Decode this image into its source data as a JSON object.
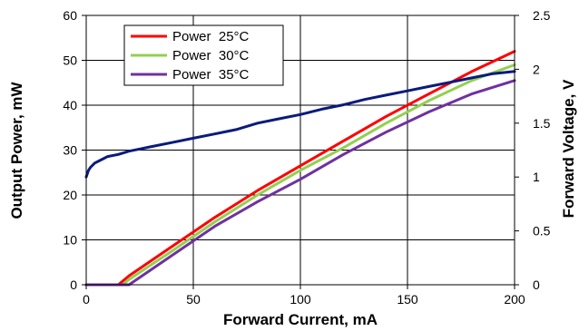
{
  "chart_data": {
    "type": "line",
    "x_axis": {
      "label": "Forward Current, mA",
      "ticks": [
        "0",
        "50",
        "100",
        "150",
        "200"
      ],
      "range": [
        0,
        200
      ]
    },
    "y_left": {
      "label": "Output Power, mW",
      "ticks": [
        "0",
        "10",
        "20",
        "30",
        "40",
        "50",
        "60"
      ],
      "range": [
        0,
        60
      ]
    },
    "y_right": {
      "label": "Forward Voltage, V",
      "ticks": [
        "0",
        "0.5",
        "1",
        "1.5",
        "2",
        "2.5"
      ],
      "range": [
        0,
        2.5
      ]
    },
    "grid": true,
    "legend_position": "top-left",
    "series": [
      {
        "name": "Power  25°C",
        "axis": "left",
        "color": "#ff0000",
        "x": [
          0,
          15,
          20,
          40,
          60,
          80,
          100,
          120,
          140,
          160,
          180,
          200
        ],
        "y": [
          0,
          0,
          2,
          8.5,
          15,
          21,
          26.5,
          32,
          37.5,
          42.5,
          47.5,
          52
        ]
      },
      {
        "name": "Power  30°C",
        "axis": "left",
        "color": "#92d050",
        "x": [
          0,
          17,
          20,
          40,
          60,
          80,
          100,
          120,
          140,
          160,
          180,
          200
        ],
        "y": [
          0,
          0,
          1.2,
          7.5,
          14,
          20,
          25.5,
          30.5,
          36,
          41,
          45.5,
          49
        ]
      },
      {
        "name": "Power  35°C",
        "axis": "left",
        "color": "#7030a0",
        "x": [
          0,
          20,
          40,
          60,
          80,
          100,
          120,
          140,
          160,
          180,
          200
        ],
        "y": [
          0,
          0,
          6.5,
          13,
          18.5,
          23.5,
          29,
          34,
          38.5,
          42.5,
          45.5
        ]
      },
      {
        "name": "",
        "axis": "right",
        "color": "#0a1b7c",
        "x": [
          0,
          1,
          2,
          4,
          6,
          8,
          10,
          15,
          20,
          25,
          30,
          40,
          50,
          60,
          70,
          80,
          90,
          100,
          110,
          120,
          130,
          140,
          150,
          160,
          170,
          180,
          190,
          200
        ],
        "y": [
          1.0,
          1.06,
          1.09,
          1.13,
          1.15,
          1.17,
          1.19,
          1.21,
          1.24,
          1.26,
          1.28,
          1.32,
          1.36,
          1.4,
          1.44,
          1.5,
          1.54,
          1.58,
          1.63,
          1.67,
          1.72,
          1.76,
          1.8,
          1.84,
          1.88,
          1.92,
          1.96,
          1.98
        ]
      }
    ]
  }
}
